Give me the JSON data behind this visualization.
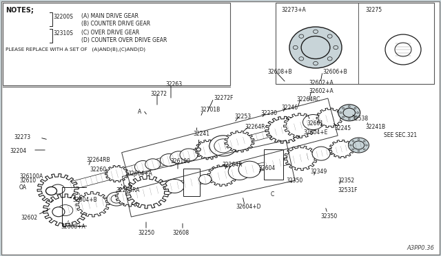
{
  "bg_color": "#c8d4d8",
  "white": "#ffffff",
  "black": "#1a1a1a",
  "gray": "#888888",
  "watermark": "A3PP0.36",
  "notes_text": "NOTES;",
  "note1_label": "32200S",
  "note1_a": "(A) MAIN DRIVE GEAR",
  "note1_b": "(B) COUNTER DRIVE GEAR",
  "note2_label": "32310S",
  "note2_c": "(C) OVER DRIVE GEAR",
  "note2_d": "(D) COUNTER OVER DRIVE GEAR",
  "please_replace": "PLEASE REPLACE WITH A SET OF   (A)AND(B),(C)AND(D)",
  "inset_label1": "32273+A",
  "inset_label2": "32275"
}
